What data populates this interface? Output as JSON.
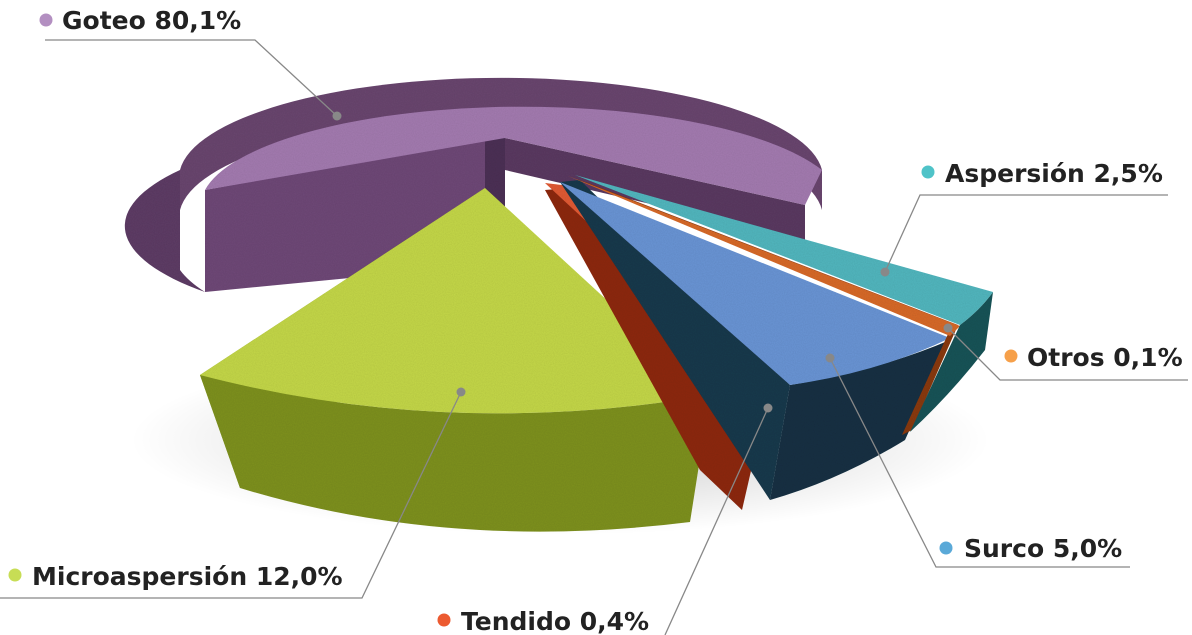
{
  "chart_data": {
    "type": "pie",
    "style": "3d-exploded",
    "title": "",
    "slices": [
      {
        "name": "Goteo",
        "value": 80.1,
        "label": "Goteo 80,1%",
        "color": "#b38fc1",
        "top_color": "#a47bb1",
        "side_color": "#6f4a78"
      },
      {
        "name": "Aspersión",
        "value": 2.5,
        "label": "Aspersión 2,5%",
        "color": "#4fc3c8",
        "top_color": "#52b7bf",
        "side_color": "#1f5558"
      },
      {
        "name": "Otros",
        "value": 0.1,
        "label": "Otros 0,1%",
        "color": "#f6a04a",
        "top_color": "#d86a2c",
        "side_color": "#8a3a16"
      },
      {
        "name": "Surco",
        "value": 5.0,
        "label": "Surco 5,0%",
        "color": "#5aa9d8",
        "top_color": "#6b95d6",
        "side_color": "#1f3a4d"
      },
      {
        "name": "Tendido",
        "value": 0.4,
        "label": "Tendido 0,4%",
        "color": "#ec5a30",
        "top_color": "#e25b36",
        "side_color": "#8e2a17"
      },
      {
        "name": "Microaspersión",
        "value": 12.0,
        "label": "Microaspersión 12,0%",
        "color": "#c7dd55",
        "top_color": "#c5d84a",
        "side_color": "#7f9224"
      }
    ],
    "legend": "callouts",
    "leader_color": "#888888"
  }
}
